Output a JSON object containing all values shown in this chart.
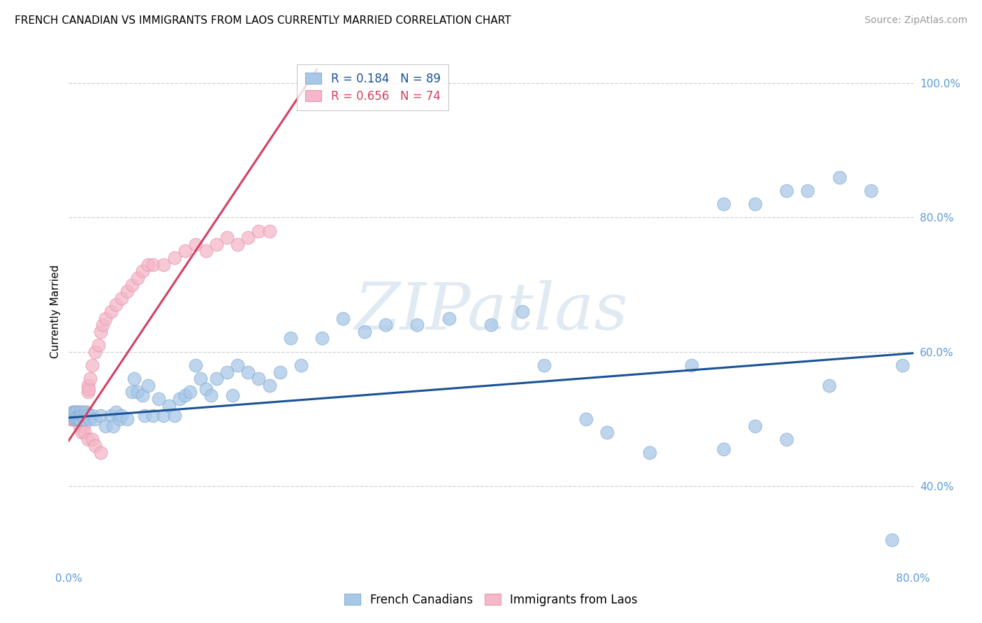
{
  "title": "FRENCH CANADIAN VS IMMIGRANTS FROM LAOS CURRENTLY MARRIED CORRELATION CHART",
  "source": "Source: ZipAtlas.com",
  "ylabel": "Currently Married",
  "xmin": 0.0,
  "xmax": 0.8,
  "ymin": 0.28,
  "ymax": 1.04,
  "yticks": [
    0.4,
    0.6,
    0.8,
    1.0
  ],
  "ytick_labels": [
    "40.0%",
    "60.0%",
    "80.0%",
    "100.0%"
  ],
  "xticks": [
    0.0,
    0.1,
    0.2,
    0.3,
    0.4,
    0.5,
    0.6,
    0.7,
    0.8
  ],
  "blue_color": "#a8c8e8",
  "pink_color": "#f4b8c8",
  "blue_edge_color": "#8ab0d4",
  "pink_edge_color": "#e898b0",
  "blue_line_color": "#1a5296",
  "pink_line_color": "#d44060",
  "blue_label": "French Canadians",
  "pink_label": "Immigrants from Laos",
  "blue_R": 0.184,
  "blue_N": 89,
  "pink_R": 0.656,
  "pink_N": 74,
  "blue_trend_x": [
    0.0,
    0.8
  ],
  "blue_trend_y": [
    0.502,
    0.598
  ],
  "pink_trend_x": [
    0.0,
    0.235
  ],
  "pink_trend_y": [
    0.468,
    1.02
  ],
  "blue_x": [
    0.003,
    0.004,
    0.005,
    0.006,
    0.006,
    0.007,
    0.007,
    0.007,
    0.008,
    0.008,
    0.009,
    0.009,
    0.01,
    0.01,
    0.01,
    0.011,
    0.011,
    0.012,
    0.012,
    0.013,
    0.014,
    0.015,
    0.016,
    0.017,
    0.018,
    0.02,
    0.022,
    0.025,
    0.03,
    0.035,
    0.04,
    0.042,
    0.045,
    0.048,
    0.05,
    0.055,
    0.06,
    0.062,
    0.065,
    0.07,
    0.072,
    0.075,
    0.08,
    0.085,
    0.09,
    0.095,
    0.1,
    0.105,
    0.11,
    0.115,
    0.12,
    0.125,
    0.13,
    0.135,
    0.14,
    0.15,
    0.155,
    0.16,
    0.17,
    0.18,
    0.19,
    0.2,
    0.21,
    0.22,
    0.24,
    0.26,
    0.28,
    0.3,
    0.33,
    0.36,
    0.4,
    0.43,
    0.45,
    0.49,
    0.51,
    0.55,
    0.59,
    0.62,
    0.65,
    0.68,
    0.7,
    0.73,
    0.76,
    0.78,
    0.79,
    0.72,
    0.68,
    0.65,
    0.62
  ],
  "blue_y": [
    0.505,
    0.51,
    0.505,
    0.5,
    0.51,
    0.505,
    0.5,
    0.51,
    0.505,
    0.5,
    0.505,
    0.5,
    0.51,
    0.505,
    0.5,
    0.505,
    0.5,
    0.51,
    0.505,
    0.505,
    0.5,
    0.505,
    0.51,
    0.505,
    0.505,
    0.5,
    0.505,
    0.5,
    0.505,
    0.49,
    0.505,
    0.49,
    0.51,
    0.5,
    0.505,
    0.5,
    0.54,
    0.56,
    0.54,
    0.535,
    0.505,
    0.55,
    0.505,
    0.53,
    0.505,
    0.52,
    0.505,
    0.53,
    0.535,
    0.54,
    0.58,
    0.56,
    0.545,
    0.535,
    0.56,
    0.57,
    0.535,
    0.58,
    0.57,
    0.56,
    0.55,
    0.57,
    0.62,
    0.58,
    0.62,
    0.65,
    0.63,
    0.64,
    0.64,
    0.65,
    0.64,
    0.66,
    0.58,
    0.5,
    0.48,
    0.45,
    0.58,
    0.82,
    0.82,
    0.84,
    0.84,
    0.86,
    0.84,
    0.32,
    0.58,
    0.55,
    0.47,
    0.49,
    0.455
  ],
  "pink_x": [
    0.001,
    0.002,
    0.002,
    0.003,
    0.003,
    0.004,
    0.004,
    0.004,
    0.005,
    0.005,
    0.006,
    0.006,
    0.006,
    0.007,
    0.007,
    0.007,
    0.008,
    0.008,
    0.009,
    0.009,
    0.009,
    0.01,
    0.01,
    0.01,
    0.011,
    0.011,
    0.012,
    0.012,
    0.013,
    0.013,
    0.014,
    0.014,
    0.015,
    0.015,
    0.016,
    0.016,
    0.017,
    0.018,
    0.018,
    0.019,
    0.02,
    0.022,
    0.025,
    0.028,
    0.03,
    0.032,
    0.035,
    0.04,
    0.045,
    0.05,
    0.055,
    0.06,
    0.065,
    0.07,
    0.075,
    0.08,
    0.09,
    0.1,
    0.11,
    0.12,
    0.13,
    0.14,
    0.15,
    0.16,
    0.17,
    0.18,
    0.19,
    0.01,
    0.012,
    0.015,
    0.018,
    0.022,
    0.025,
    0.03
  ],
  "pink_y": [
    0.505,
    0.5,
    0.505,
    0.5,
    0.505,
    0.5,
    0.505,
    0.51,
    0.505,
    0.5,
    0.505,
    0.5,
    0.51,
    0.505,
    0.5,
    0.51,
    0.505,
    0.5,
    0.505,
    0.5,
    0.51,
    0.505,
    0.5,
    0.51,
    0.505,
    0.5,
    0.505,
    0.51,
    0.5,
    0.505,
    0.5,
    0.49,
    0.5,
    0.51,
    0.505,
    0.5,
    0.51,
    0.54,
    0.55,
    0.545,
    0.56,
    0.58,
    0.6,
    0.61,
    0.63,
    0.64,
    0.65,
    0.66,
    0.67,
    0.68,
    0.69,
    0.7,
    0.71,
    0.72,
    0.73,
    0.73,
    0.73,
    0.74,
    0.75,
    0.76,
    0.75,
    0.76,
    0.77,
    0.76,
    0.77,
    0.78,
    0.78,
    0.49,
    0.48,
    0.48,
    0.47,
    0.47,
    0.46,
    0.45
  ],
  "watermark": "ZIPatlas",
  "bg_color": "#ffffff",
  "grid_color": "#d0d0d0",
  "tick_color": "#5b9bd5",
  "title_fontsize": 11,
  "ylabel_fontsize": 11,
  "tick_fontsize": 11,
  "legend_fontsize": 12,
  "source_fontsize": 10
}
